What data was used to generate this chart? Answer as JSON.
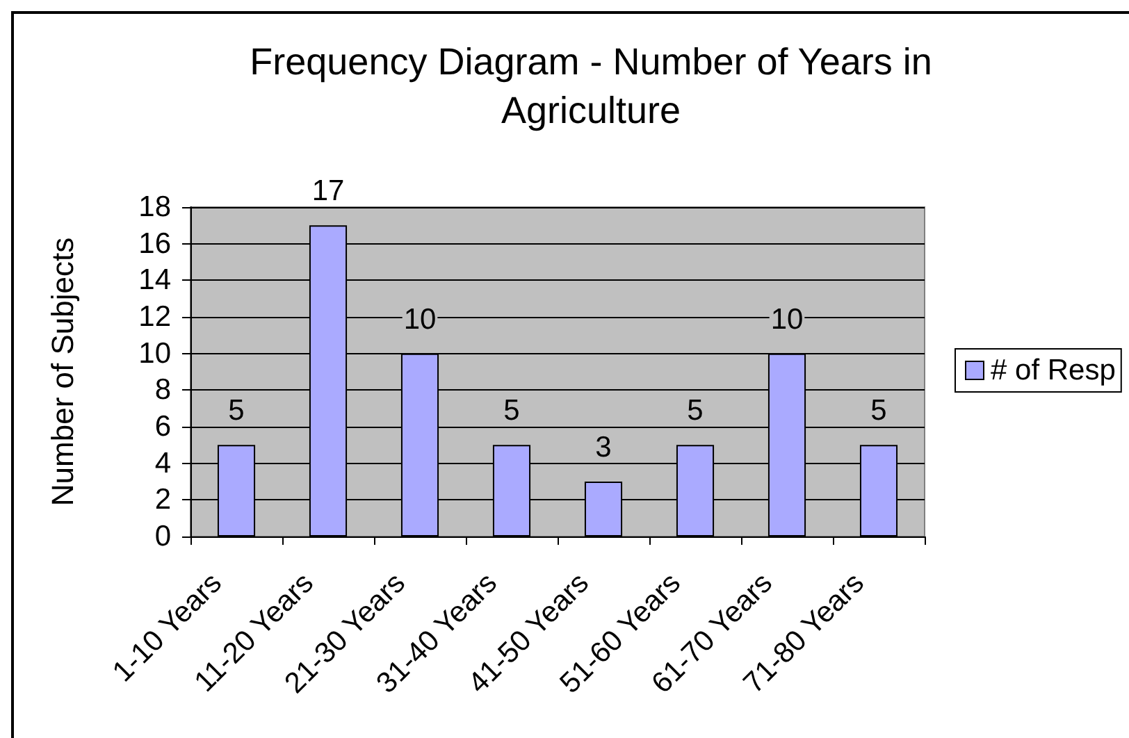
{
  "chart_data": {
    "type": "bar",
    "title": "Frequency Diagram - Number of Years in Agriculture",
    "ylabel": "Number of Subjects",
    "categories": [
      "1-10 Years",
      "11-20 Years",
      "21-30 Years",
      "31-40 Years",
      "41-50 Years",
      "51-60 Years",
      "61-70 Years",
      "71-80 Years"
    ],
    "series": [
      {
        "name": "# of Resp",
        "color": "#aaaaff",
        "values": [
          5,
          17,
          10,
          5,
          3,
          5,
          10,
          5
        ]
      }
    ],
    "ylim": [
      0,
      18
    ],
    "yticks": [
      0,
      2,
      4,
      6,
      8,
      10,
      12,
      14,
      16,
      18
    ],
    "grid": "y",
    "legend": "right",
    "data_labels": true
  }
}
